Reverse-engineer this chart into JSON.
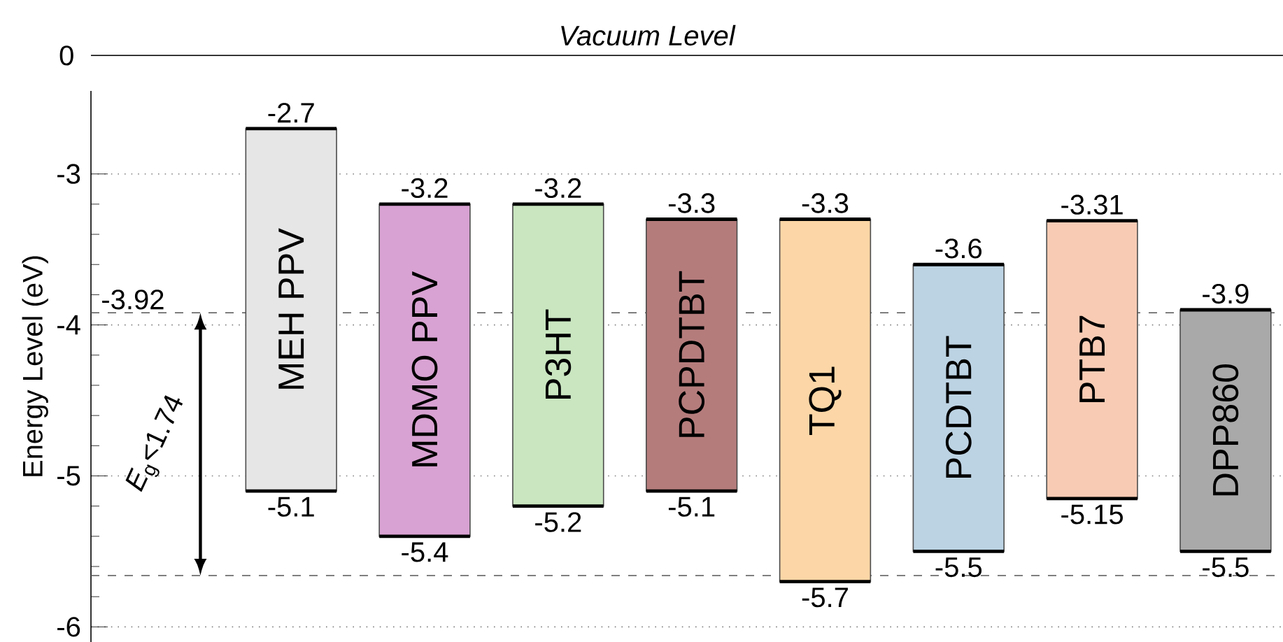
{
  "chart_data": [
    {
      "type": "other",
      "annotations": [
        "0",
        "Vacuum Level"
      ]
    },
    {
      "type": "bar",
      "ylabel": "Energy Level (eV)",
      "categories": [
        "MEH PPV",
        "MDMO PPV",
        "P3HT",
        "PCPDTBT",
        "TQ1",
        "PCDTBT",
        "PTB7",
        "DPP860"
      ],
      "base": [
        -5.1,
        -5.4,
        -5.2,
        -5.1,
        -5.7,
        -5.5,
        -5.15,
        -5.5
      ],
      "values": [
        2.4,
        2.2,
        2.0,
        1.8,
        2.4,
        1.9,
        1.84,
        1.6
      ],
      "colors": [
        "#e6e6e6",
        "#d8a2d2",
        "#c9e6c0",
        "#b57c7c",
        "#fcd6a6",
        "#bcd3e3",
        "#f8cbb4",
        "#a9a9a9"
      ],
      "ylim": [
        -6.1,
        -2.45
      ],
      "yticks": [
        -3,
        -4,
        -5,
        -6
      ],
      "grid": "y",
      "tick_labels": "y",
      "ref_lines": [
        {
          "axis": "y",
          "value": -3.92,
          "label": "-3.92",
          "line_style": "dashed",
          "color": "#555555"
        },
        {
          "axis": "y",
          "value": -5.66,
          "label": null,
          "line_style": "dashed",
          "color": "#555555"
        }
      ],
      "annotations": [
        "*E*$_{g}$<1.74",
        {
          "text": "-2.7",
          "x": "MEH PPV",
          "y": -2.7
        },
        {
          "text": "-5.1",
          "x": "MEH PPV",
          "y": -5.1
        },
        {
          "text": "-3.2",
          "x": "MDMO PPV",
          "y": -3.2
        },
        {
          "text": "-5.4",
          "x": "MDMO PPV",
          "y": -5.4
        },
        {
          "text": "-3.2",
          "x": "P3HT",
          "y": -3.2
        },
        {
          "text": "-5.2",
          "x": "P3HT",
          "y": -5.2
        },
        {
          "text": "-3.3",
          "x": "PCPDTBT",
          "y": -3.3
        },
        {
          "text": "-5.1",
          "x": "PCPDTBT",
          "y": -5.1
        },
        {
          "text": "-3.3",
          "x": "TQ1",
          "y": -3.3
        },
        {
          "text": "-5.7",
          "x": "TQ1",
          "y": -5.7
        },
        {
          "text": "-3.6",
          "x": "PCDTBT",
          "y": -3.6
        },
        {
          "text": "-5.5",
          "x": "PCDTBT",
          "y": -5.5
        },
        {
          "text": "-3.31",
          "x": "PTB7",
          "y": -3.31
        },
        {
          "text": "-5.15",
          "x": "PTB7",
          "y": -5.15
        },
        {
          "text": "-3.9",
          "x": "DPP860",
          "y": -3.9
        },
        {
          "text": "-5.5",
          "x": "DPP860",
          "y": -5.5
        }
      ]
    }
  ]
}
